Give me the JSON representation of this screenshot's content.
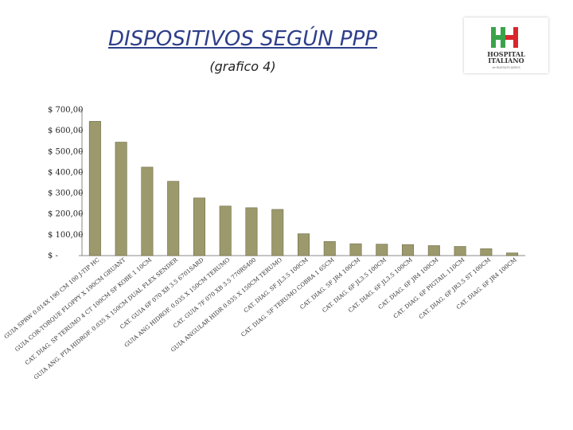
{
  "header": {
    "title": "DISPOSITIVOS SEGÚN PPP",
    "subtitle": "(grafico 4)"
  },
  "logo": {
    "line1": "HOSPITAL",
    "line2": "ITALIANO",
    "line3": "de BUENOS AIRES",
    "colors": {
      "green": "#3aa34a",
      "red": "#d9262c"
    }
  },
  "colors": {
    "bar": "#9c9a6c",
    "axis": "#888888",
    "title": "#2f3f8a"
  },
  "chart_data": {
    "type": "bar",
    "ylim": [
      0,
      700
    ],
    "yticks": [
      0,
      100,
      200,
      300,
      400,
      500,
      600,
      700
    ],
    "ytick_labels": [
      "$ -",
      "$ 100,00",
      "$ 200,00",
      "$ 300,00",
      "$ 400,00",
      "$ 500,00",
      "$ 600,00",
      "$ 700,00"
    ],
    "categories": [
      "GUIA SPRW 0.014X 190 CM 100 J-TIP HC",
      "GUIA COR-TORQUE FLOPPY X 190CM GRUANT",
      "CAT. DIAG. SP TERUMO 4 CT 100CM SF KOBE 1 10CM",
      "GUIA ANG. PTA HIDROF. 0.035 X 150CM DUAL FLEX SENDER",
      "CAT. GUIA 6F 070 XB 3.5 6701SARD",
      "GUIA ANG HIDROF. 0.035 X 150CM TERUMO",
      "CAT. GUIA 7F 070 XB 3.5 770RS400",
      "GUIA ANGULAR HIDR 0.035 X 150CM TERUMO",
      "CAT. DIAG. SF JL3.5 100CM",
      "CAT. DIAG. 5F TERUMO COBRA 1 65CM",
      "CAT. DIAG. 5F JR4 100CM",
      "CAT. DIAG. 6F JL3.5 100CM",
      "CAT. DIAG. 6F JL3.5 100CM",
      "CAT. DIAG. 6F JR4 100CM",
      "CAT. DIAG. 6F PIGTAIL 110CM",
      "CAT. DIAG. 6F JR3.5 ST 100CM",
      "CAT. DIAG. 6F JR4 100CM"
    ],
    "values": [
      645,
      545,
      425,
      357,
      277,
      238,
      230,
      222,
      105,
      68,
      57,
      55,
      53,
      48,
      44,
      33,
      13
    ],
    "title": "",
    "xlabel": "",
    "ylabel": "",
    "grid": false,
    "legend": "none"
  }
}
